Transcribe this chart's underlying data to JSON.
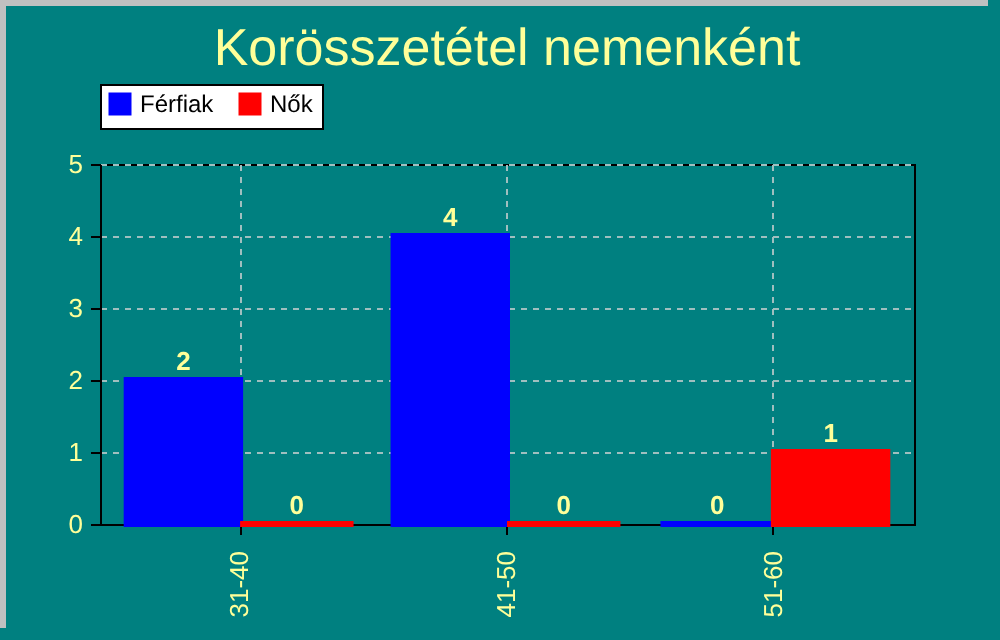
{
  "chart_data": {
    "type": "bar",
    "title": "Korösszetétel nemenként",
    "categories": [
      "31-40",
      "41-50",
      "51-60"
    ],
    "series": [
      {
        "name": "Férfiak",
        "color": "#0000ff",
        "values": [
          2,
          4,
          0
        ]
      },
      {
        "name": "Nők",
        "color": "#ff0000",
        "values": [
          0,
          0,
          1
        ]
      }
    ],
    "ylim": [
      0,
      5
    ],
    "yticks": [
      0,
      1,
      2,
      3,
      4,
      5
    ],
    "grid": true,
    "legend": "top",
    "data_labels": true
  }
}
